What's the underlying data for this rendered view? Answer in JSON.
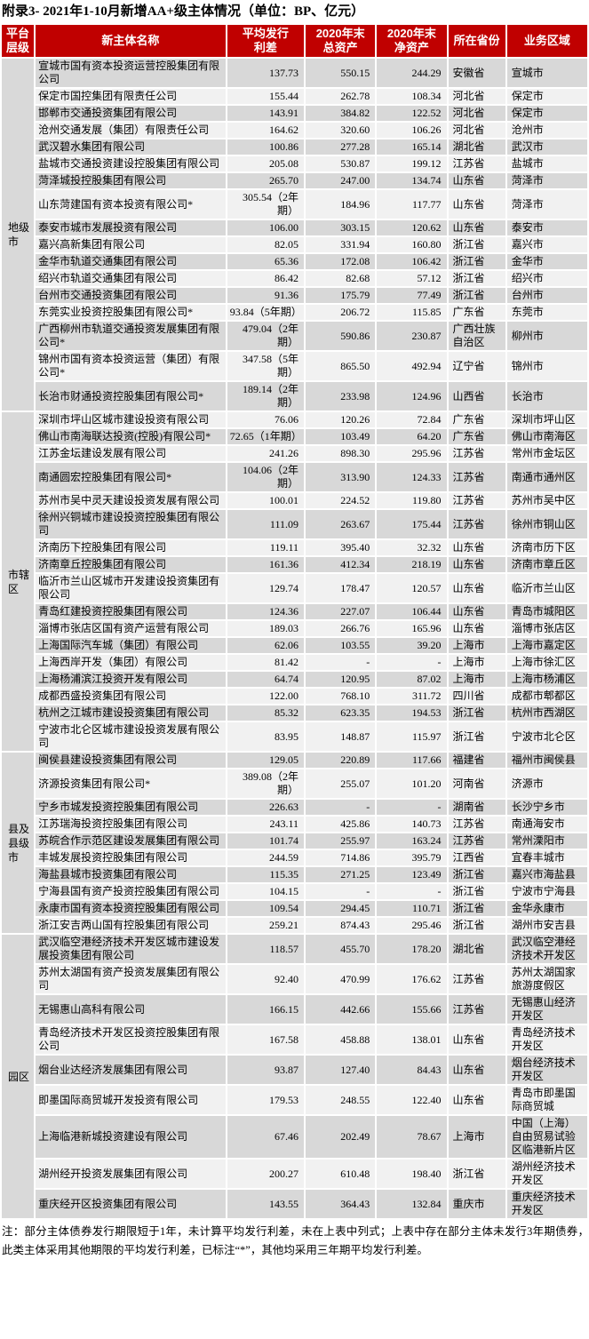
{
  "title": "附录3- 2021年1-10月新增AA+级主体情况（单位：BP、亿元）",
  "columns": [
    {
      "id": "level",
      "lines": [
        "平台",
        "层级"
      ]
    },
    {
      "id": "entity_name",
      "lines": [
        "新主体名称"
      ]
    },
    {
      "id": "avg_spread",
      "lines": [
        "平均发行",
        "利差"
      ]
    },
    {
      "id": "total_assets_2020",
      "lines": [
        "2020年末",
        "总资产"
      ]
    },
    {
      "id": "net_assets_2020",
      "lines": [
        "2020年末",
        "净资产"
      ]
    },
    {
      "id": "province",
      "lines": [
        "所在省份"
      ]
    },
    {
      "id": "region",
      "lines": [
        "业务区域"
      ]
    }
  ],
  "groups": [
    {
      "level": "地级市",
      "level_lines": [
        "地级",
        "市"
      ],
      "rows": [
        {
          "name": "宣城市国有资本投资运营控股集团有限公司",
          "spread": "137.73",
          "total_assets": "550.15",
          "net_assets": "244.29",
          "province": "安徽省",
          "region": "宣城市"
        },
        {
          "name": "保定市国控集团有限责任公司",
          "spread": "155.44",
          "total_assets": "262.78",
          "net_assets": "108.34",
          "province": "河北省",
          "region": "保定市"
        },
        {
          "name": "邯郸市交通投资集团有限公司",
          "spread": "143.91",
          "total_assets": "384.82",
          "net_assets": "122.52",
          "province": "河北省",
          "region": "保定市"
        },
        {
          "name": "沧州交通发展（集团）有限责任公司",
          "spread": "164.62",
          "total_assets": "320.60",
          "net_assets": "106.26",
          "province": "河北省",
          "region": "沧州市"
        },
        {
          "name": "武汉碧水集团有限公司",
          "spread": "100.86",
          "total_assets": "277.28",
          "net_assets": "165.14",
          "province": "湖北省",
          "region": "武汉市"
        },
        {
          "name": "盐城市交通投资建设控股集团有限公司",
          "spread": "205.08",
          "total_assets": "530.87",
          "net_assets": "199.12",
          "province": "江苏省",
          "region": "盐城市"
        },
        {
          "name": "菏泽城投控股集团有限公司",
          "spread": "265.70",
          "total_assets": "247.00",
          "net_assets": "134.74",
          "province": "山东省",
          "region": "菏泽市"
        },
        {
          "name": "山东菏建国有资本投资有限公司*",
          "spread": "305.54（2年期）",
          "total_assets": "184.96",
          "net_assets": "117.77",
          "province": "山东省",
          "region": "菏泽市"
        },
        {
          "name": "泰安市城市发展投资有限公司",
          "spread": "106.00",
          "total_assets": "303.15",
          "net_assets": "120.62",
          "province": "山东省",
          "region": "泰安市"
        },
        {
          "name": "嘉兴高新集团有限公司",
          "spread": "82.05",
          "total_assets": "331.94",
          "net_assets": "160.80",
          "province": "浙江省",
          "region": "嘉兴市"
        },
        {
          "name": "金华市轨道交通集团有限公司",
          "spread": "65.36",
          "total_assets": "172.08",
          "net_assets": "106.42",
          "province": "浙江省",
          "region": "金华市"
        },
        {
          "name": "绍兴市轨道交通集团有限公司",
          "spread": "86.42",
          "total_assets": "82.68",
          "net_assets": "57.12",
          "province": "浙江省",
          "region": "绍兴市"
        },
        {
          "name": "台州市交通投资集团有限公司",
          "spread": "91.36",
          "total_assets": "175.79",
          "net_assets": "77.49",
          "province": "浙江省",
          "region": "台州市"
        },
        {
          "name": "东莞实业投资控股集团有限公司*",
          "spread": "93.84（5年期）",
          "total_assets": "206.72",
          "net_assets": "115.85",
          "province": "广东省",
          "region": "东莞市"
        },
        {
          "name": "广西柳州市轨道交通投资发展集团有限公司*",
          "spread": "479.04（2年期）",
          "total_assets": "590.86",
          "net_assets": "230.87",
          "province": "广西壮族自治区",
          "region": "柳州市"
        },
        {
          "name": "锦州市国有资本投资运营（集团）有限公司*",
          "spread": "347.58（5年期）",
          "total_assets": "865.50",
          "net_assets": "492.94",
          "province": "辽宁省",
          "region": "锦州市"
        },
        {
          "name": "长治市财通投资控股集团有限公司*",
          "spread": "189.14（2年期）",
          "total_assets": "233.98",
          "net_assets": "124.96",
          "province": "山西省",
          "region": "长治市"
        }
      ]
    },
    {
      "level": "市辖区",
      "level_lines": [
        "市辖",
        "区"
      ],
      "rows": [
        {
          "name": "深圳市坪山区城市建设投资有限公司",
          "spread": "76.06",
          "total_assets": "120.26",
          "net_assets": "72.84",
          "province": "广东省",
          "region": "深圳市坪山区"
        },
        {
          "name": "佛山市南海联达投资(控股)有限公司*",
          "spread": "72.65（1年期）",
          "total_assets": "103.49",
          "net_assets": "64.20",
          "province": "广东省",
          "region": "佛山市南海区"
        },
        {
          "name": "江苏金坛建设发展有限公司",
          "spread": "241.26",
          "total_assets": "898.30",
          "net_assets": "295.96",
          "province": "江苏省",
          "region": "常州市金坛区"
        },
        {
          "name": "南通圆宏控股集团有限公司*",
          "spread": "104.06（2年期）",
          "total_assets": "313.90",
          "net_assets": "124.33",
          "province": "江苏省",
          "region": "南通市通州区"
        },
        {
          "name": "苏州市吴中灵天建设投资发展有限公司",
          "spread": "100.01",
          "total_assets": "224.52",
          "net_assets": "119.80",
          "province": "江苏省",
          "region": "苏州市吴中区"
        },
        {
          "name": "徐州兴铜城市建设投资控股集团有限公司",
          "spread": "111.09",
          "total_assets": "263.67",
          "net_assets": "175.44",
          "province": "江苏省",
          "region": "徐州市铜山区"
        },
        {
          "name": "济南历下控股集团有限公司",
          "spread": "119.11",
          "total_assets": "395.40",
          "net_assets": "32.32",
          "province": "山东省",
          "region": "济南市历下区"
        },
        {
          "name": "济南章丘控股集团有限公司",
          "spread": "161.36",
          "total_assets": "412.34",
          "net_assets": "218.19",
          "province": "山东省",
          "region": "济南市章丘区"
        },
        {
          "name": "临沂市兰山区城市开发建设投资集团有限公司",
          "spread": "129.74",
          "total_assets": "178.47",
          "net_assets": "120.57",
          "province": "山东省",
          "region": "临沂市兰山区"
        },
        {
          "name": "青岛红建投资控股集团有限公司",
          "spread": "124.36",
          "total_assets": "227.07",
          "net_assets": "106.44",
          "province": "山东省",
          "region": "青岛市城阳区"
        },
        {
          "name": "淄博市张店区国有资产运营有限公司",
          "spread": "189.03",
          "total_assets": "266.76",
          "net_assets": "165.96",
          "province": "山东省",
          "region": "淄博市张店区"
        },
        {
          "name": "上海国际汽车城（集团）有限公司",
          "spread": "62.06",
          "total_assets": "103.55",
          "net_assets": "39.20",
          "province": "上海市",
          "region": "上海市嘉定区"
        },
        {
          "name": "上海西岸开发（集团）有限公司",
          "spread": "81.42",
          "total_assets": "-",
          "net_assets": "-",
          "province": "上海市",
          "region": "上海市徐汇区"
        },
        {
          "name": "上海杨浦滨江投资开发有限公司",
          "spread": "64.74",
          "total_assets": "120.95",
          "net_assets": "87.02",
          "province": "上海市",
          "region": "上海市杨浦区"
        },
        {
          "name": "成都西盛投资集团有限公司",
          "spread": "122.00",
          "total_assets": "768.10",
          "net_assets": "311.72",
          "province": "四川省",
          "region": "成都市郫都区"
        },
        {
          "name": "杭州之江城市建设投资集团有限公司",
          "spread": "85.32",
          "total_assets": "623.35",
          "net_assets": "194.53",
          "province": "浙江省",
          "region": "杭州市西湖区"
        },
        {
          "name": "宁波市北仑区城市建设投资发展有限公司",
          "spread": "83.95",
          "total_assets": "148.87",
          "net_assets": "115.97",
          "province": "浙江省",
          "region": "宁波市北仑区"
        }
      ]
    },
    {
      "level": "县及县级市",
      "level_lines": [
        "县及",
        "县级",
        "市"
      ],
      "rows": [
        {
          "name": "闽侯县建设投资集团有限公司",
          "spread": "129.05",
          "total_assets": "220.89",
          "net_assets": "117.66",
          "province": "福建省",
          "region": "福州市闽侯县"
        },
        {
          "name": "济源投资集团有限公司*",
          "spread": "389.08（2年期）",
          "total_assets": "255.07",
          "net_assets": "101.20",
          "province": "河南省",
          "region": "济源市"
        },
        {
          "name": "宁乡市城发投资控股集团有限公司",
          "spread": "226.63",
          "total_assets": "-",
          "net_assets": "-",
          "province": "湖南省",
          "region": "长沙宁乡市"
        },
        {
          "name": "江苏瑞海投资控股集团有限公司",
          "spread": "243.11",
          "total_assets": "425.86",
          "net_assets": "140.73",
          "province": "江苏省",
          "region": "南通海安市"
        },
        {
          "name": "苏皖合作示范区建设发展集团有限公司",
          "spread": "101.74",
          "total_assets": "255.97",
          "net_assets": "163.24",
          "province": "江苏省",
          "region": "常州溧阳市"
        },
        {
          "name": "丰城发展投资控股集团有限公司",
          "spread": "244.59",
          "total_assets": "714.86",
          "net_assets": "395.79",
          "province": "江西省",
          "region": "宜春丰城市"
        },
        {
          "name": "海盐县城市投资集团有限公司",
          "spread": "115.35",
          "total_assets": "271.25",
          "net_assets": "123.49",
          "province": "浙江省",
          "region": "嘉兴市海盐县"
        },
        {
          "name": "宁海县国有资产投资控股集团有限公司",
          "spread": "104.15",
          "total_assets": "-",
          "net_assets": "-",
          "province": "浙江省",
          "region": "宁波市宁海县"
        },
        {
          "name": "永康市国有资本投资控股集团有限公司",
          "spread": "109.54",
          "total_assets": "294.45",
          "net_assets": "110.71",
          "province": "浙江省",
          "region": "金华永康市"
        },
        {
          "name": "浙江安吉两山国有控股集团有限公司",
          "spread": "259.21",
          "total_assets": "874.43",
          "net_assets": "295.46",
          "province": "浙江省",
          "region": "湖州市安吉县"
        }
      ]
    },
    {
      "level": "园区",
      "level_lines": [
        "园区"
      ],
      "rows": [
        {
          "name": "武汉临空港经济技术开发区城市建设发展投资集团有限公司",
          "spread": "118.57",
          "total_assets": "455.70",
          "net_assets": "178.20",
          "province": "湖北省",
          "region": "武汉临空港经济技术开发区"
        },
        {
          "name": "苏州太湖国有资产投资发展集团有限公司",
          "spread": "92.40",
          "total_assets": "470.99",
          "net_assets": "176.62",
          "province": "江苏省",
          "region": "苏州太湖国家旅游度假区"
        },
        {
          "name": "无锡惠山高科有限公司",
          "spread": "166.15",
          "total_assets": "442.66",
          "net_assets": "155.66",
          "province": "江苏省",
          "region": "无锡惠山经济开发区"
        },
        {
          "name": "青岛经济技术开发区投资控股集团有限公司",
          "spread": "167.58",
          "total_assets": "458.88",
          "net_assets": "138.01",
          "province": "山东省",
          "region": "青岛经济技术开发区"
        },
        {
          "name": "烟台业达经济发展集团有限公司",
          "spread": "93.87",
          "total_assets": "127.40",
          "net_assets": "84.43",
          "province": "山东省",
          "region": "烟台经济技术开发区"
        },
        {
          "name": "即墨国际商贸城开发投资有限公司",
          "spread": "179.53",
          "total_assets": "248.55",
          "net_assets": "122.40",
          "province": "山东省",
          "region": "青岛市即墨国际商贸城"
        },
        {
          "name": "上海临港新城投资建设有限公司",
          "spread": "67.46",
          "total_assets": "202.49",
          "net_assets": "78.67",
          "province": "上海市",
          "region": "中国（上海）自由贸易试验区临港新片区"
        },
        {
          "name": "湖州经开投资发展集团有限公司",
          "spread": "200.27",
          "total_assets": "610.48",
          "net_assets": "198.40",
          "province": "浙江省",
          "region": "湖州经济技术开发区"
        },
        {
          "name": "重庆经开区投资集团有限公司",
          "spread": "143.55",
          "total_assets": "364.43",
          "net_assets": "132.84",
          "province": "重庆市",
          "region": "重庆经济技术开发区"
        }
      ]
    }
  ],
  "note": "注：部分主体债券发行期限短于1年，未计算平均发行利差，未在上表中列式；上表中存在部分主体未发行3年期债券，此类主体采用其他期限的平均发行利差，已标注“*”，其他均采用三年期平均发行利差。",
  "colors": {
    "header_bg": "#C00000",
    "header_text": "#FFFFFF",
    "stripe_dark": "#D8D8D8",
    "stripe_light": "#F1F1F1",
    "level_bg": "#D9D9D9"
  }
}
